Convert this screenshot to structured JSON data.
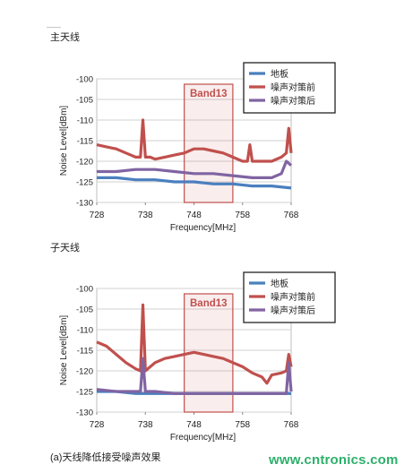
{
  "colors": {
    "pcb": "#4a7fbf",
    "before": "#c0504d",
    "after": "#8064a2",
    "band": "#c0504d",
    "watermark": "#2db06a"
  },
  "chart_data": [
    {
      "panel_title": "主天线",
      "type": "line",
      "xlabel": "Frequency[MHz]",
      "ylabel": "Noise Level[dBm]",
      "xlim": [
        728,
        768
      ],
      "ylim": [
        -130,
        -100
      ],
      "xticks": [
        "728",
        "738",
        "748",
        "758",
        "768"
      ],
      "yticks": [
        "-100",
        "-105",
        "-110",
        "-115",
        "-120",
        "-125",
        "-130"
      ],
      "band": {
        "label": "Band13",
        "x_start": 746,
        "x_end": 756
      },
      "legend": [
        "地板",
        "噪声对策前",
        "噪声对策后"
      ],
      "series": [
        {
          "name": "地板",
          "x": [
            728,
            732,
            736,
            740,
            744,
            748,
            752,
            756,
            760,
            764,
            768
          ],
          "y": [
            -124,
            -124,
            -124.5,
            -124.5,
            -125,
            -125,
            -125.5,
            -125.5,
            -126,
            -126,
            -126.5
          ]
        },
        {
          "name": "噪声对策前",
          "x": [
            728,
            730,
            732,
            734,
            736,
            737,
            737.5,
            738,
            739,
            740,
            742,
            744,
            746,
            748,
            750,
            752,
            754,
            756,
            758,
            759,
            759.5,
            760,
            761,
            762,
            764,
            766,
            767,
            767.5,
            768
          ],
          "y": [
            -116,
            -116.5,
            -117,
            -118,
            -119,
            -119,
            -110,
            -119,
            -119,
            -119.5,
            -119,
            -118.5,
            -118,
            -117,
            -117,
            -117.5,
            -118,
            -119,
            -120,
            -120,
            -116,
            -120,
            -120,
            -120,
            -120,
            -119,
            -118,
            -112,
            -118
          ]
        },
        {
          "name": "噪声对策后",
          "x": [
            728,
            732,
            736,
            740,
            744,
            748,
            752,
            756,
            760,
            764,
            766,
            767,
            768
          ],
          "y": [
            -122.5,
            -122.5,
            -122,
            -122,
            -122.5,
            -123,
            -123,
            -123.5,
            -124,
            -124,
            -123,
            -120,
            -121
          ]
        }
      ]
    },
    {
      "panel_title": "子天线",
      "type": "line",
      "xlabel": "Frequency[MHz]",
      "ylabel": "Noise Level[dBm]",
      "xlim": [
        728,
        768
      ],
      "ylim": [
        -130,
        -100
      ],
      "xticks": [
        "728",
        "738",
        "748",
        "758",
        "768"
      ],
      "yticks": [
        "-100",
        "-105",
        "-110",
        "-115",
        "-120",
        "-125",
        "-130"
      ],
      "band": {
        "label": "Band13",
        "x_start": 746,
        "x_end": 756
      },
      "legend": [
        "地板",
        "噪声对策前",
        "噪声对策后"
      ],
      "series": [
        {
          "name": "地板",
          "x": [
            728,
            732,
            736,
            740,
            744,
            748,
            752,
            756,
            760,
            764,
            768
          ],
          "y": [
            -125,
            -125,
            -125.5,
            -125.5,
            -125.5,
            -125.5,
            -125.5,
            -125.5,
            -125.5,
            -125.5,
            -125.5
          ]
        },
        {
          "name": "噪声对策前",
          "x": [
            728,
            730,
            732,
            734,
            736,
            737,
            737.5,
            738,
            740,
            742,
            744,
            746,
            748,
            750,
            752,
            754,
            756,
            758,
            760,
            762,
            763,
            764,
            766,
            767,
            767.5,
            768
          ],
          "y": [
            -113,
            -114,
            -116,
            -118,
            -119.5,
            -120,
            -104,
            -120,
            -118,
            -117,
            -116.5,
            -116,
            -115.5,
            -116,
            -116.5,
            -117,
            -118,
            -119,
            -120.5,
            -121.5,
            -123,
            -121,
            -120.5,
            -120,
            -116,
            -119
          ]
        },
        {
          "name": "噪声对策后",
          "x": [
            728,
            732,
            736,
            737,
            737.5,
            738,
            740,
            744,
            748,
            752,
            756,
            760,
            764,
            766,
            767,
            767.5,
            768
          ],
          "y": [
            -124.5,
            -125,
            -125,
            -125,
            -117,
            -125,
            -125,
            -125.5,
            -125.5,
            -125.5,
            -125.5,
            -125.5,
            -125.5,
            -125.5,
            -125.5,
            -118,
            -125
          ]
        }
      ]
    }
  ],
  "caption": "(a)天线降低接受噪声效果",
  "watermark": "www.cntronics.com"
}
